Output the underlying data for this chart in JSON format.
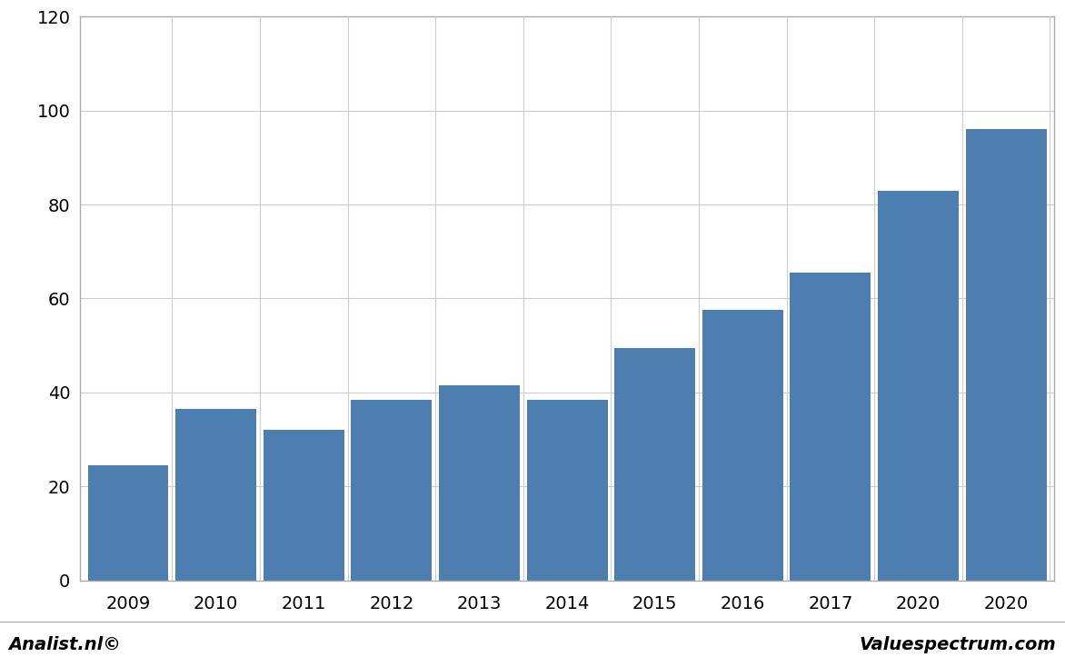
{
  "categories": [
    "2009",
    "2010",
    "2011",
    "2012",
    "2013",
    "2014",
    "2015",
    "2016",
    "2017",
    "2020",
    "2020"
  ],
  "values": [
    24.5,
    36.5,
    32.0,
    38.5,
    41.5,
    38.5,
    49.5,
    57.5,
    65.5,
    83.0,
    96.0
  ],
  "bar_color": "#4d7eb0",
  "ylim": [
    0,
    120
  ],
  "yticks": [
    0,
    20,
    40,
    60,
    80,
    100,
    120
  ],
  "background_color": "#ffffff",
  "plot_area_color": "#ffffff",
  "footer_color": "#cccccc",
  "footer_left": "Analist.nl©",
  "footer_right": "Valuespectrum.com",
  "grid_color": "#cccccc",
  "bar_width": 0.92,
  "border_color": "#aaaaaa",
  "tick_fontsize": 14,
  "footer_fontsize": 14
}
